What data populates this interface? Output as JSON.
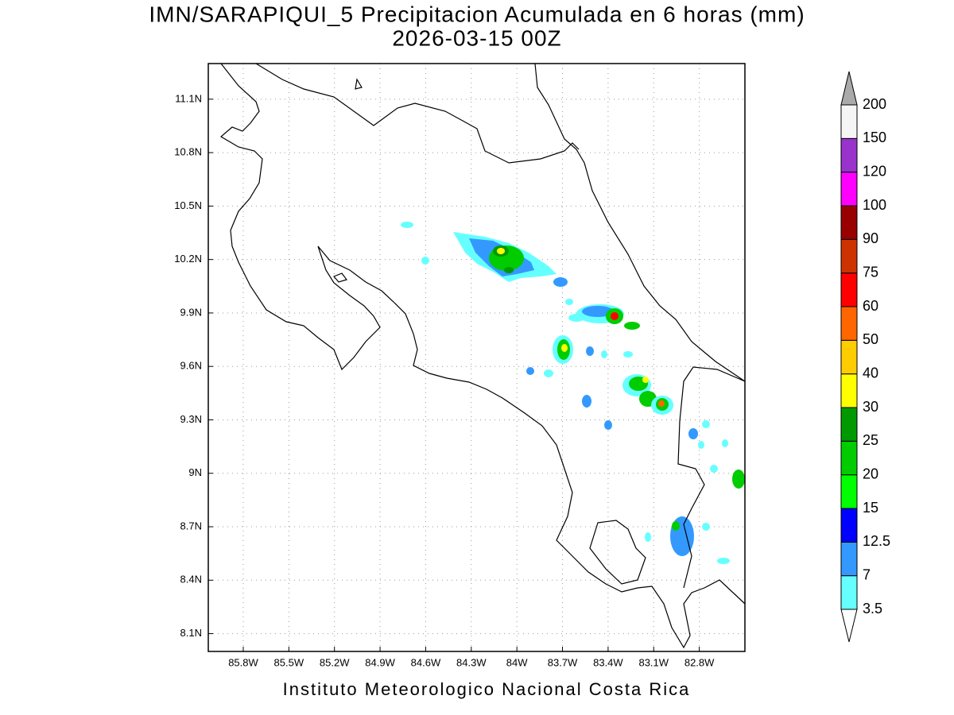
{
  "title": "IMN/SARAPIQUI_5 Precipitacion Acumulada en 6 horas (mm)",
  "subtitle": "2026-03-15 00Z",
  "footer": "Instituto Meteorologico Nacional Costa Rica",
  "lon_range": [
    -86.03,
    -82.5
  ],
  "lat_range": [
    8.0,
    11.3
  ],
  "lon_ticks": [
    {
      "value": -85.8,
      "label": "85.8W"
    },
    {
      "value": -85.5,
      "label": "85.5W"
    },
    {
      "value": -85.2,
      "label": "85.2W"
    },
    {
      "value": -84.9,
      "label": "84.9W"
    },
    {
      "value": -84.6,
      "label": "84.6W"
    },
    {
      "value": -84.3,
      "label": "84.3W"
    },
    {
      "value": -84.0,
      "label": "84W"
    },
    {
      "value": -83.7,
      "label": "83.7W"
    },
    {
      "value": -83.4,
      "label": "83.4W"
    },
    {
      "value": -83.1,
      "label": "83.1W"
    },
    {
      "value": -82.8,
      "label": "82.8W"
    }
  ],
  "lat_ticks": [
    {
      "value": 8.1,
      "label": "8.1N"
    },
    {
      "value": 8.4,
      "label": "8.4N"
    },
    {
      "value": 8.7,
      "label": "8.7N"
    },
    {
      "value": 9.0,
      "label": "9N"
    },
    {
      "value": 9.3,
      "label": "9.3N"
    },
    {
      "value": 9.6,
      "label": "9.6N"
    },
    {
      "value": 9.9,
      "label": "9.9N"
    },
    {
      "value": 10.2,
      "label": "10.2N"
    },
    {
      "value": 10.5,
      "label": "10.5N"
    },
    {
      "value": 10.8,
      "label": "10.8N"
    },
    {
      "value": 11.1,
      "label": "11.1N"
    }
  ],
  "colorbar": {
    "levels": [
      3.5,
      7,
      12.5,
      15,
      20,
      25,
      30,
      40,
      50,
      60,
      75,
      90,
      100,
      120,
      150,
      200
    ],
    "colors": [
      "#ffffff",
      "#66ffff",
      "#3399ff",
      "#0000ff",
      "#00ff00",
      "#00cc00",
      "#009900",
      "#ffff00",
      "#ffcc00",
      "#ff6600",
      "#ff0000",
      "#cc3300",
      "#990000",
      "#ff00ff",
      "#9933cc",
      "#f5f5f5",
      "#aaaaaa"
    ]
  }
}
